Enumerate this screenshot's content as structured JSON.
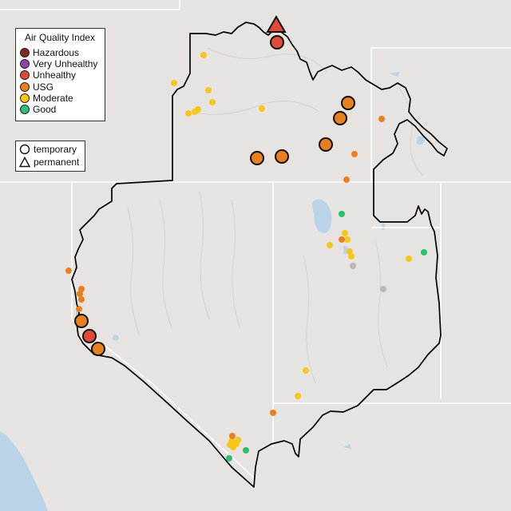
{
  "legend": {
    "title": "Air Quality Index",
    "categories": [
      {
        "label": "Hazardous",
        "color": "#7e2a1e"
      },
      {
        "label": "Very Unhealthy",
        "color": "#8e44ad"
      },
      {
        "label": "Unhealthy",
        "color": "#e04a3a"
      },
      {
        "label": "USG",
        "color": "#e9801f"
      },
      {
        "label": "Moderate",
        "color": "#f3c81a"
      },
      {
        "label": "Good",
        "color": "#2fbf71"
      }
    ]
  },
  "type_legend": {
    "items": [
      {
        "label": "temporary",
        "shape": "circle"
      },
      {
        "label": "permanent",
        "shape": "triangle"
      }
    ]
  },
  "colors": {
    "land": "#e6e3e0",
    "water": "#b9d3e8",
    "state_lines": "#ffffff",
    "boundary": "#000000",
    "no_data": "#b8b8b8"
  },
  "monitors": {
    "permanent": [
      {
        "category": "Unhealthy"
      }
    ],
    "temporary": [
      {
        "category": "Unhealthy"
      },
      {
        "category": "USG"
      },
      {
        "category": "USG"
      },
      {
        "category": "USG"
      },
      {
        "category": "USG"
      },
      {
        "category": "USG"
      },
      {
        "category": "USG"
      },
      {
        "category": "Unhealthy"
      },
      {
        "category": "USG"
      }
    ]
  }
}
